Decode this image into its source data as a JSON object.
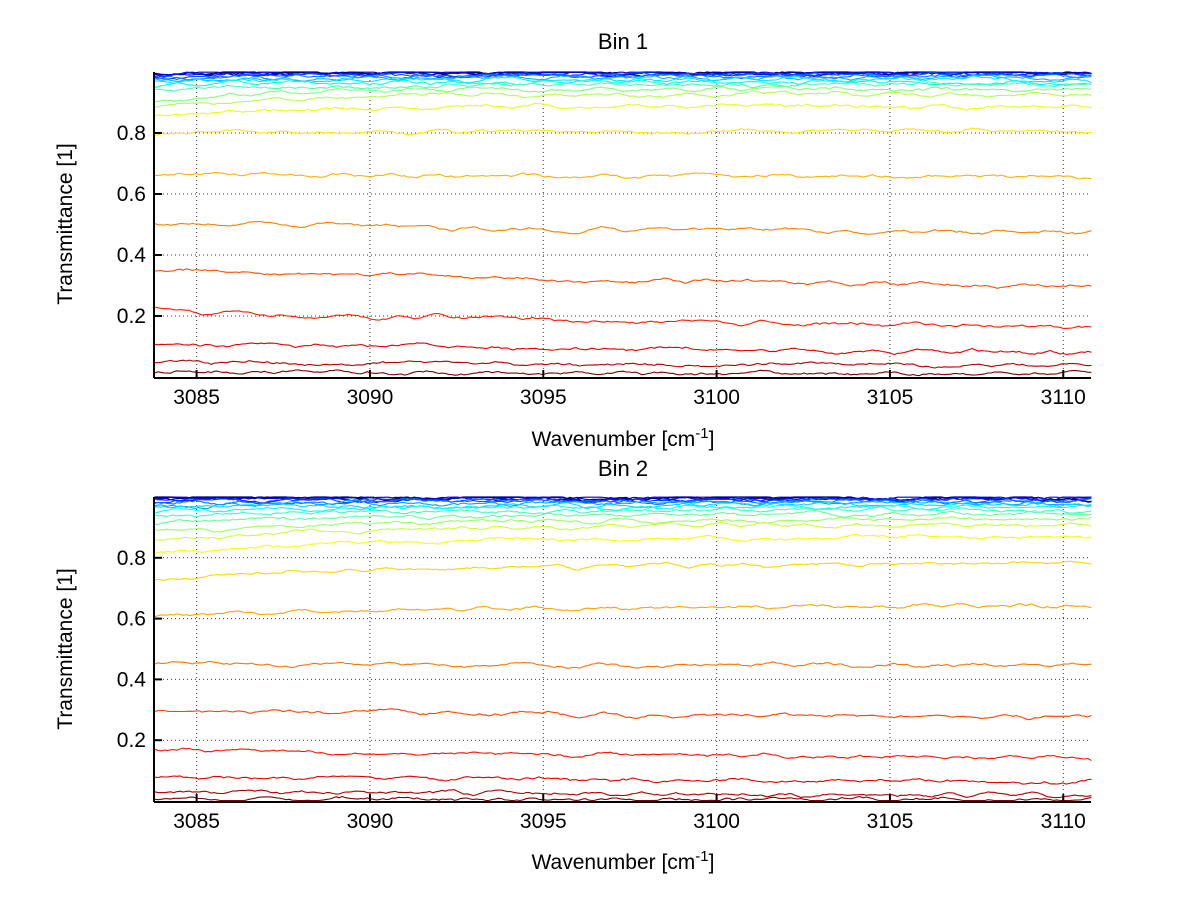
{
  "figure": {
    "background": "#ffffff"
  },
  "chart_data": [
    {
      "type": "line",
      "title": "Bin 1",
      "ylabel": "Transmittance [1]",
      "xlabel_prefix": "Wavenumber [cm",
      "xlabel_sup": "-1",
      "xlabel_suffix": "]",
      "xlim": [
        3083.8,
        3110.8
      ],
      "ylim": [
        0,
        1
      ],
      "xticks": [
        3085,
        3090,
        3095,
        3100,
        3105,
        3110
      ],
      "yticks": [
        0.2,
        0.4,
        0.6,
        0.8
      ],
      "grid": true,
      "grid_style": "dotted",
      "axis_color": "#000000",
      "rise_tau": 0.15,
      "noise_amp": 0.006,
      "absorption_dips": [
        {
          "x": 3096.0,
          "sigma": 0.35,
          "depth": 0.012
        },
        {
          "x": 3097.6,
          "sigma": 0.3,
          "depth": 0.006
        }
      ],
      "series": [
        {
          "color": "#000080",
          "left": 0.998,
          "right": 0.999
        },
        {
          "color": "#0000B2",
          "left": 0.996,
          "right": 0.998
        },
        {
          "color": "#0000E5",
          "left": 0.993,
          "right": 0.996
        },
        {
          "color": "#001AFF",
          "left": 0.99,
          "right": 0.994
        },
        {
          "color": "#004DFF",
          "left": 0.986,
          "right": 0.991
        },
        {
          "color": "#0080FF",
          "left": 0.981,
          "right": 0.987
        },
        {
          "color": "#00B2FF",
          "left": 0.974,
          "right": 0.982
        },
        {
          "color": "#00E5FF",
          "left": 0.966,
          "right": 0.976
        },
        {
          "color": "#00FFE5",
          "left": 0.955,
          "right": 0.968
        },
        {
          "color": "#4DFFB2",
          "left": 0.941,
          "right": 0.958
        },
        {
          "color": "#80FF80",
          "left": 0.908,
          "right": 0.945
        },
        {
          "color": "#B2FF4D",
          "left": 0.885,
          "right": 0.928
        },
        {
          "color": "#E5FF1A",
          "left": 0.852,
          "right": 0.888
        },
        {
          "color": "#FFE500",
          "left": 0.798,
          "right": 0.806
        },
        {
          "color": "#FFB200",
          "left": 0.668,
          "right": 0.655
        },
        {
          "color": "#FF8000",
          "left": 0.506,
          "right": 0.472
        },
        {
          "color": "#FF4D00",
          "left": 0.35,
          "right": 0.296
        },
        {
          "color": "#FF1A00",
          "left": 0.218,
          "right": 0.163
        },
        {
          "color": "#E50000",
          "left": 0.112,
          "right": 0.079
        },
        {
          "color": "#B20000",
          "left": 0.051,
          "right": 0.038
        },
        {
          "color": "#800000",
          "left": 0.016,
          "right": 0.012
        }
      ]
    },
    {
      "type": "line",
      "title": "Bin 2",
      "ylabel": "Transmittance [1]",
      "xlabel_prefix": "Wavenumber [cm",
      "xlabel_sup": "-1",
      "xlabel_suffix": "]",
      "xlim": [
        3083.8,
        3110.8
      ],
      "ylim": [
        0,
        1
      ],
      "xticks": [
        3085,
        3090,
        3095,
        3100,
        3105,
        3110
      ],
      "yticks": [
        0.2,
        0.4,
        0.6,
        0.8
      ],
      "grid": true,
      "grid_style": "dotted",
      "axis_color": "#000000",
      "rise_tau": 0.26,
      "noise_amp": 0.006,
      "absorption_dips": [
        {
          "x": 3096.0,
          "sigma": 0.35,
          "depth": 0.012
        },
        {
          "x": 3097.6,
          "sigma": 0.3,
          "depth": 0.006
        }
      ],
      "series": [
        {
          "color": "#000080",
          "left": 0.997,
          "right": 0.999
        },
        {
          "color": "#0000B0",
          "left": 0.995,
          "right": 0.998
        },
        {
          "color": "#0000E1",
          "left": 0.992,
          "right": 0.996
        },
        {
          "color": "#0012FF",
          "left": 0.989,
          "right": 0.994
        },
        {
          "color": "#0043FF",
          "left": 0.985,
          "right": 0.991
        },
        {
          "color": "#0073FF",
          "left": 0.979,
          "right": 0.987
        },
        {
          "color": "#00A4FF",
          "left": 0.972,
          "right": 0.982
        },
        {
          "color": "#00D5FF",
          "left": 0.963,
          "right": 0.976
        },
        {
          "color": "#00FFF9",
          "left": 0.952,
          "right": 0.968
        },
        {
          "color": "#37FFC8",
          "left": 0.938,
          "right": 0.958
        },
        {
          "color": "#67FF98",
          "left": 0.92,
          "right": 0.945
        },
        {
          "color": "#98FF67",
          "left": 0.888,
          "right": 0.927
        },
        {
          "color": "#C8FF37",
          "left": 0.86,
          "right": 0.911
        },
        {
          "color": "#F9FF06",
          "left": 0.818,
          "right": 0.87
        },
        {
          "color": "#FFD500",
          "left": 0.728,
          "right": 0.784
        },
        {
          "color": "#FFA400",
          "left": 0.608,
          "right": 0.641
        },
        {
          "color": "#FF7300",
          "left": 0.452,
          "right": 0.446
        },
        {
          "color": "#FF4300",
          "left": 0.3,
          "right": 0.274
        },
        {
          "color": "#FF1200",
          "left": 0.168,
          "right": 0.143
        },
        {
          "color": "#E10000",
          "left": 0.083,
          "right": 0.062
        },
        {
          "color": "#B00000",
          "left": 0.03,
          "right": 0.02
        },
        {
          "color": "#800000",
          "left": 0.006,
          "right": 0.004
        }
      ]
    }
  ]
}
